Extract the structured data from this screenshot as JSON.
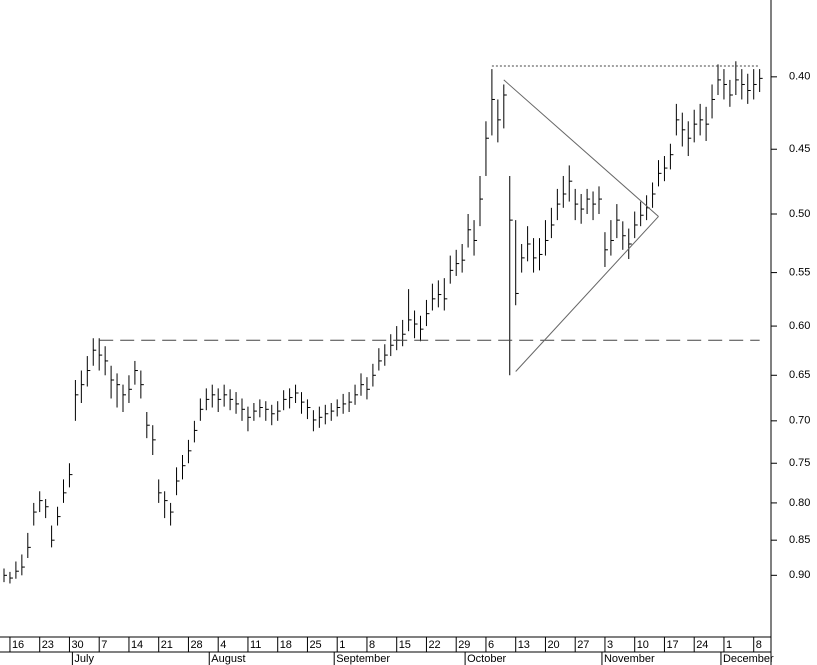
{
  "chart_data": {
    "type": "ohlc",
    "color": "#000000",
    "log_scale": true,
    "y_inverted": true,
    "ylim": [
      0.353,
      0.995
    ],
    "yticks": [
      {
        "value": 0.4,
        "label": "0.40"
      },
      {
        "value": 0.45,
        "label": "0.45"
      },
      {
        "value": 0.5,
        "label": "0.50"
      },
      {
        "value": 0.55,
        "label": "0.55"
      },
      {
        "value": 0.6,
        "label": "0.60"
      },
      {
        "value": 0.65,
        "label": "0.65"
      },
      {
        "value": 0.7,
        "label": "0.70"
      },
      {
        "value": 0.75,
        "label": "0.75"
      },
      {
        "value": 0.8,
        "label": "0.80"
      },
      {
        "value": 0.85,
        "label": "0.85"
      },
      {
        "value": 0.9,
        "label": "0.90"
      }
    ],
    "categories": [
      null,
      "16",
      null,
      null,
      null,
      null,
      "23",
      null,
      null,
      null,
      null,
      "30",
      null,
      null,
      null,
      null,
      "7",
      null,
      null,
      null,
      null,
      "14",
      null,
      null,
      null,
      null,
      "21",
      null,
      null,
      null,
      null,
      "28",
      null,
      null,
      null,
      null,
      "4",
      null,
      null,
      null,
      null,
      "11",
      null,
      null,
      null,
      null,
      "18",
      null,
      null,
      null,
      null,
      "25",
      null,
      null,
      null,
      null,
      "1",
      null,
      null,
      null,
      null,
      "8",
      null,
      null,
      null,
      null,
      "15",
      null,
      null,
      null,
      null,
      "22",
      null,
      null,
      null,
      null,
      "29",
      null,
      null,
      null,
      null,
      "6",
      null,
      null,
      null,
      null,
      "13",
      null,
      null,
      null,
      null,
      "20",
      null,
      null,
      null,
      null,
      "27",
      null,
      null,
      null,
      null,
      "3",
      null,
      null,
      null,
      null,
      "10",
      null,
      null,
      null,
      null,
      "17",
      null,
      null,
      null,
      null,
      "24",
      null,
      null,
      null,
      null,
      "1",
      null,
      null,
      null,
      null,
      "8",
      null
    ],
    "months": [
      {
        "value": 12,
        "label": "July"
      },
      {
        "value": 35,
        "label": "August"
      },
      {
        "value": 56,
        "label": "September"
      },
      {
        "value": 78,
        "label": "October"
      },
      {
        "value": 101,
        "label": "November"
      },
      {
        "value": 121,
        "label": "December"
      }
    ],
    "close": [
      0.9,
      0.904,
      0.894,
      0.888,
      0.86,
      0.812,
      0.797,
      0.805,
      0.85,
      0.818,
      0.787,
      0.764,
      0.671,
      0.66,
      0.645,
      0.624,
      0.629,
      0.635,
      0.655,
      0.66,
      0.671,
      0.665,
      0.645,
      0.66,
      0.705,
      0.722,
      0.787,
      0.797,
      0.812,
      0.772,
      0.753,
      0.735,
      0.711,
      0.687,
      0.676,
      0.671,
      0.676,
      0.671,
      0.676,
      0.681,
      0.687,
      0.696,
      0.689,
      0.685,
      0.687,
      0.692,
      0.689,
      0.676,
      0.674,
      0.669,
      0.679,
      0.685,
      0.699,
      0.696,
      0.692,
      0.689,
      0.685,
      0.681,
      0.679,
      0.671,
      0.66,
      0.665,
      0.65,
      0.635,
      0.629,
      0.619,
      0.614,
      0.608,
      0.594,
      0.598,
      0.603,
      0.588,
      0.574,
      0.57,
      0.574,
      0.548,
      0.542,
      0.539,
      0.513,
      0.522,
      0.488,
      0.442,
      0.415,
      0.429,
      0.412,
      0.505,
      0.569,
      0.537,
      0.525,
      0.537,
      0.534,
      0.522,
      0.509,
      0.492,
      0.484,
      0.474,
      0.492,
      0.496,
      0.488,
      0.492,
      0.488,
      0.53,
      0.522,
      0.505,
      0.518,
      0.525,
      0.509,
      0.501,
      0.495,
      0.484,
      0.468,
      0.464,
      0.454,
      0.429,
      0.436,
      0.442,
      0.432,
      0.429,
      0.432,
      0.415,
      0.402,
      0.405,
      0.412,
      0.402,
      0.405,
      0.409,
      0.405,
      0.401
    ],
    "low": [
      0.89,
      0.895,
      0.88,
      0.87,
      0.84,
      0.8,
      0.785,
      0.795,
      0.83,
      0.805,
      0.77,
      0.75,
      0.655,
      0.645,
      0.63,
      0.612,
      0.612,
      0.62,
      0.64,
      0.648,
      0.66,
      0.65,
      0.635,
      0.645,
      0.69,
      0.705,
      0.77,
      0.785,
      0.8,
      0.755,
      0.74,
      0.722,
      0.7,
      0.675,
      0.664,
      0.66,
      0.664,
      0.66,
      0.665,
      0.668,
      0.675,
      0.684,
      0.68,
      0.676,
      0.678,
      0.682,
      0.678,
      0.666,
      0.664,
      0.66,
      0.668,
      0.676,
      0.688,
      0.684,
      0.682,
      0.68,
      0.676,
      0.67,
      0.668,
      0.66,
      0.648,
      0.652,
      0.638,
      0.622,
      0.618,
      0.608,
      0.6,
      0.594,
      0.565,
      0.585,
      0.59,
      0.575,
      0.56,
      0.557,
      0.555,
      0.535,
      0.53,
      0.525,
      0.5,
      0.505,
      0.47,
      0.43,
      0.395,
      0.415,
      0.405,
      0.47,
      0.505,
      0.525,
      0.51,
      0.52,
      0.52,
      0.505,
      0.495,
      0.48,
      0.47,
      0.462,
      0.48,
      0.484,
      0.48,
      0.482,
      0.478,
      0.515,
      0.505,
      0.492,
      0.506,
      0.512,
      0.498,
      0.49,
      0.485,
      0.475,
      0.458,
      0.455,
      0.446,
      0.418,
      0.424,
      0.43,
      0.422,
      0.418,
      0.42,
      0.405,
      0.392,
      0.395,
      0.402,
      0.39,
      0.395,
      0.398,
      0.395,
      0.395
    ],
    "high": [
      0.91,
      0.912,
      0.905,
      0.9,
      0.875,
      0.83,
      0.812,
      0.82,
      0.86,
      0.83,
      0.8,
      0.78,
      0.7,
      0.68,
      0.662,
      0.64,
      0.645,
      0.65,
      0.675,
      0.685,
      0.69,
      0.68,
      0.66,
      0.675,
      0.72,
      0.74,
      0.8,
      0.82,
      0.83,
      0.79,
      0.77,
      0.75,
      0.725,
      0.7,
      0.688,
      0.685,
      0.69,
      0.684,
      0.688,
      0.692,
      0.7,
      0.712,
      0.7,
      0.696,
      0.7,
      0.705,
      0.7,
      0.688,
      0.686,
      0.68,
      0.692,
      0.698,
      0.712,
      0.708,
      0.704,
      0.7,
      0.695,
      0.692,
      0.69,
      0.682,
      0.672,
      0.676,
      0.662,
      0.645,
      0.64,
      0.63,
      0.624,
      0.62,
      0.605,
      0.612,
      0.615,
      0.6,
      0.585,
      0.582,
      0.585,
      0.56,
      0.553,
      0.55,
      0.528,
      0.535,
      0.51,
      0.47,
      0.44,
      0.445,
      0.435,
      0.65,
      0.58,
      0.55,
      0.54,
      0.55,
      0.548,
      0.535,
      0.52,
      0.505,
      0.495,
      0.49,
      0.505,
      0.508,
      0.5,
      0.505,
      0.5,
      0.545,
      0.535,
      0.52,
      0.53,
      0.538,
      0.52,
      0.51,
      0.505,
      0.495,
      0.478,
      0.474,
      0.465,
      0.44,
      0.448,
      0.455,
      0.445,
      0.44,
      0.444,
      0.428,
      0.412,
      0.415,
      0.42,
      0.412,
      0.415,
      0.418,
      0.415,
      0.41
    ],
    "overlays": [
      {
        "style": "dashed",
        "from": [
          16,
          0.614
        ],
        "to": [
          127,
          0.614
        ]
      },
      {
        "style": "dotted",
        "from": [
          82,
          0.393
        ],
        "to": [
          127,
          0.393
        ]
      },
      {
        "style": "solid",
        "from": [
          84,
          0.402
        ],
        "to": [
          110,
          0.502
        ]
      },
      {
        "style": "solid",
        "from": [
          86,
          0.646
        ],
        "to": [
          110,
          0.502
        ]
      }
    ]
  }
}
